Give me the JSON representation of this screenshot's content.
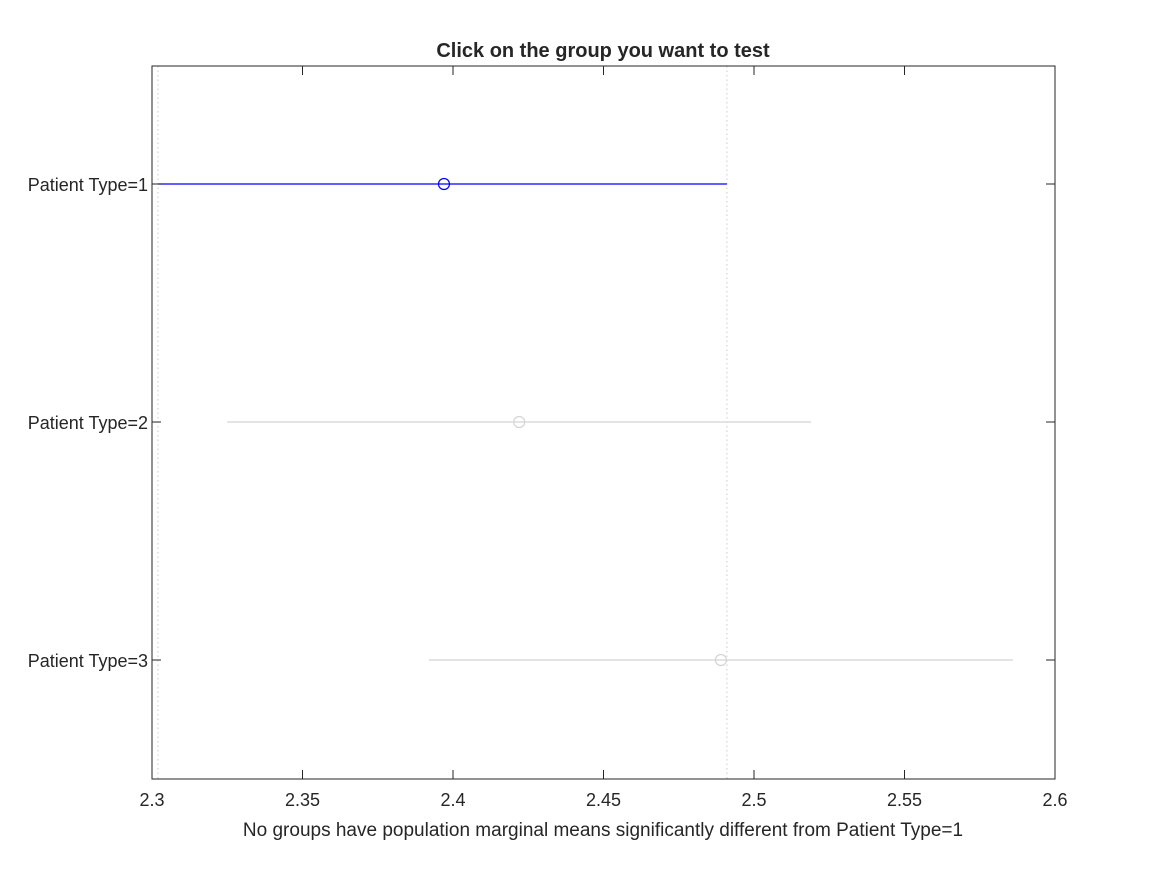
{
  "chart_data": {
    "type": "scatter",
    "title": "Click on the group you want to test",
    "xlabel": "No groups have population marginal means significantly different from Patient Type=1",
    "ylabel": "",
    "xlim": [
      2.3,
      2.6
    ],
    "xticks": [
      2.3,
      2.35,
      2.4,
      2.45,
      2.5,
      2.55,
      2.6
    ],
    "xtick_labels": [
      "2.3",
      "2.35",
      "2.4",
      "2.45",
      "2.5",
      "2.55",
      "2.6"
    ],
    "categories": [
      "Patient Type=1",
      "Patient Type=2",
      "Patient Type=3"
    ],
    "groups": [
      {
        "label": "Patient Type=1",
        "mean": 2.397,
        "lower": 2.302,
        "upper": 2.491,
        "selected": true
      },
      {
        "label": "Patient Type=2",
        "mean": 2.422,
        "lower": 2.325,
        "upper": 2.519,
        "selected": false
      },
      {
        "label": "Patient Type=3",
        "mean": 2.489,
        "lower": 2.392,
        "upper": 2.586,
        "selected": false
      }
    ],
    "reference_lines": [
      2.302,
      2.491
    ],
    "grid": false,
    "legend": "none",
    "colors": {
      "selected": "#0000ff",
      "unselected": "#d4d4d4",
      "reference": "#cccccc",
      "axis": "#262626"
    }
  }
}
